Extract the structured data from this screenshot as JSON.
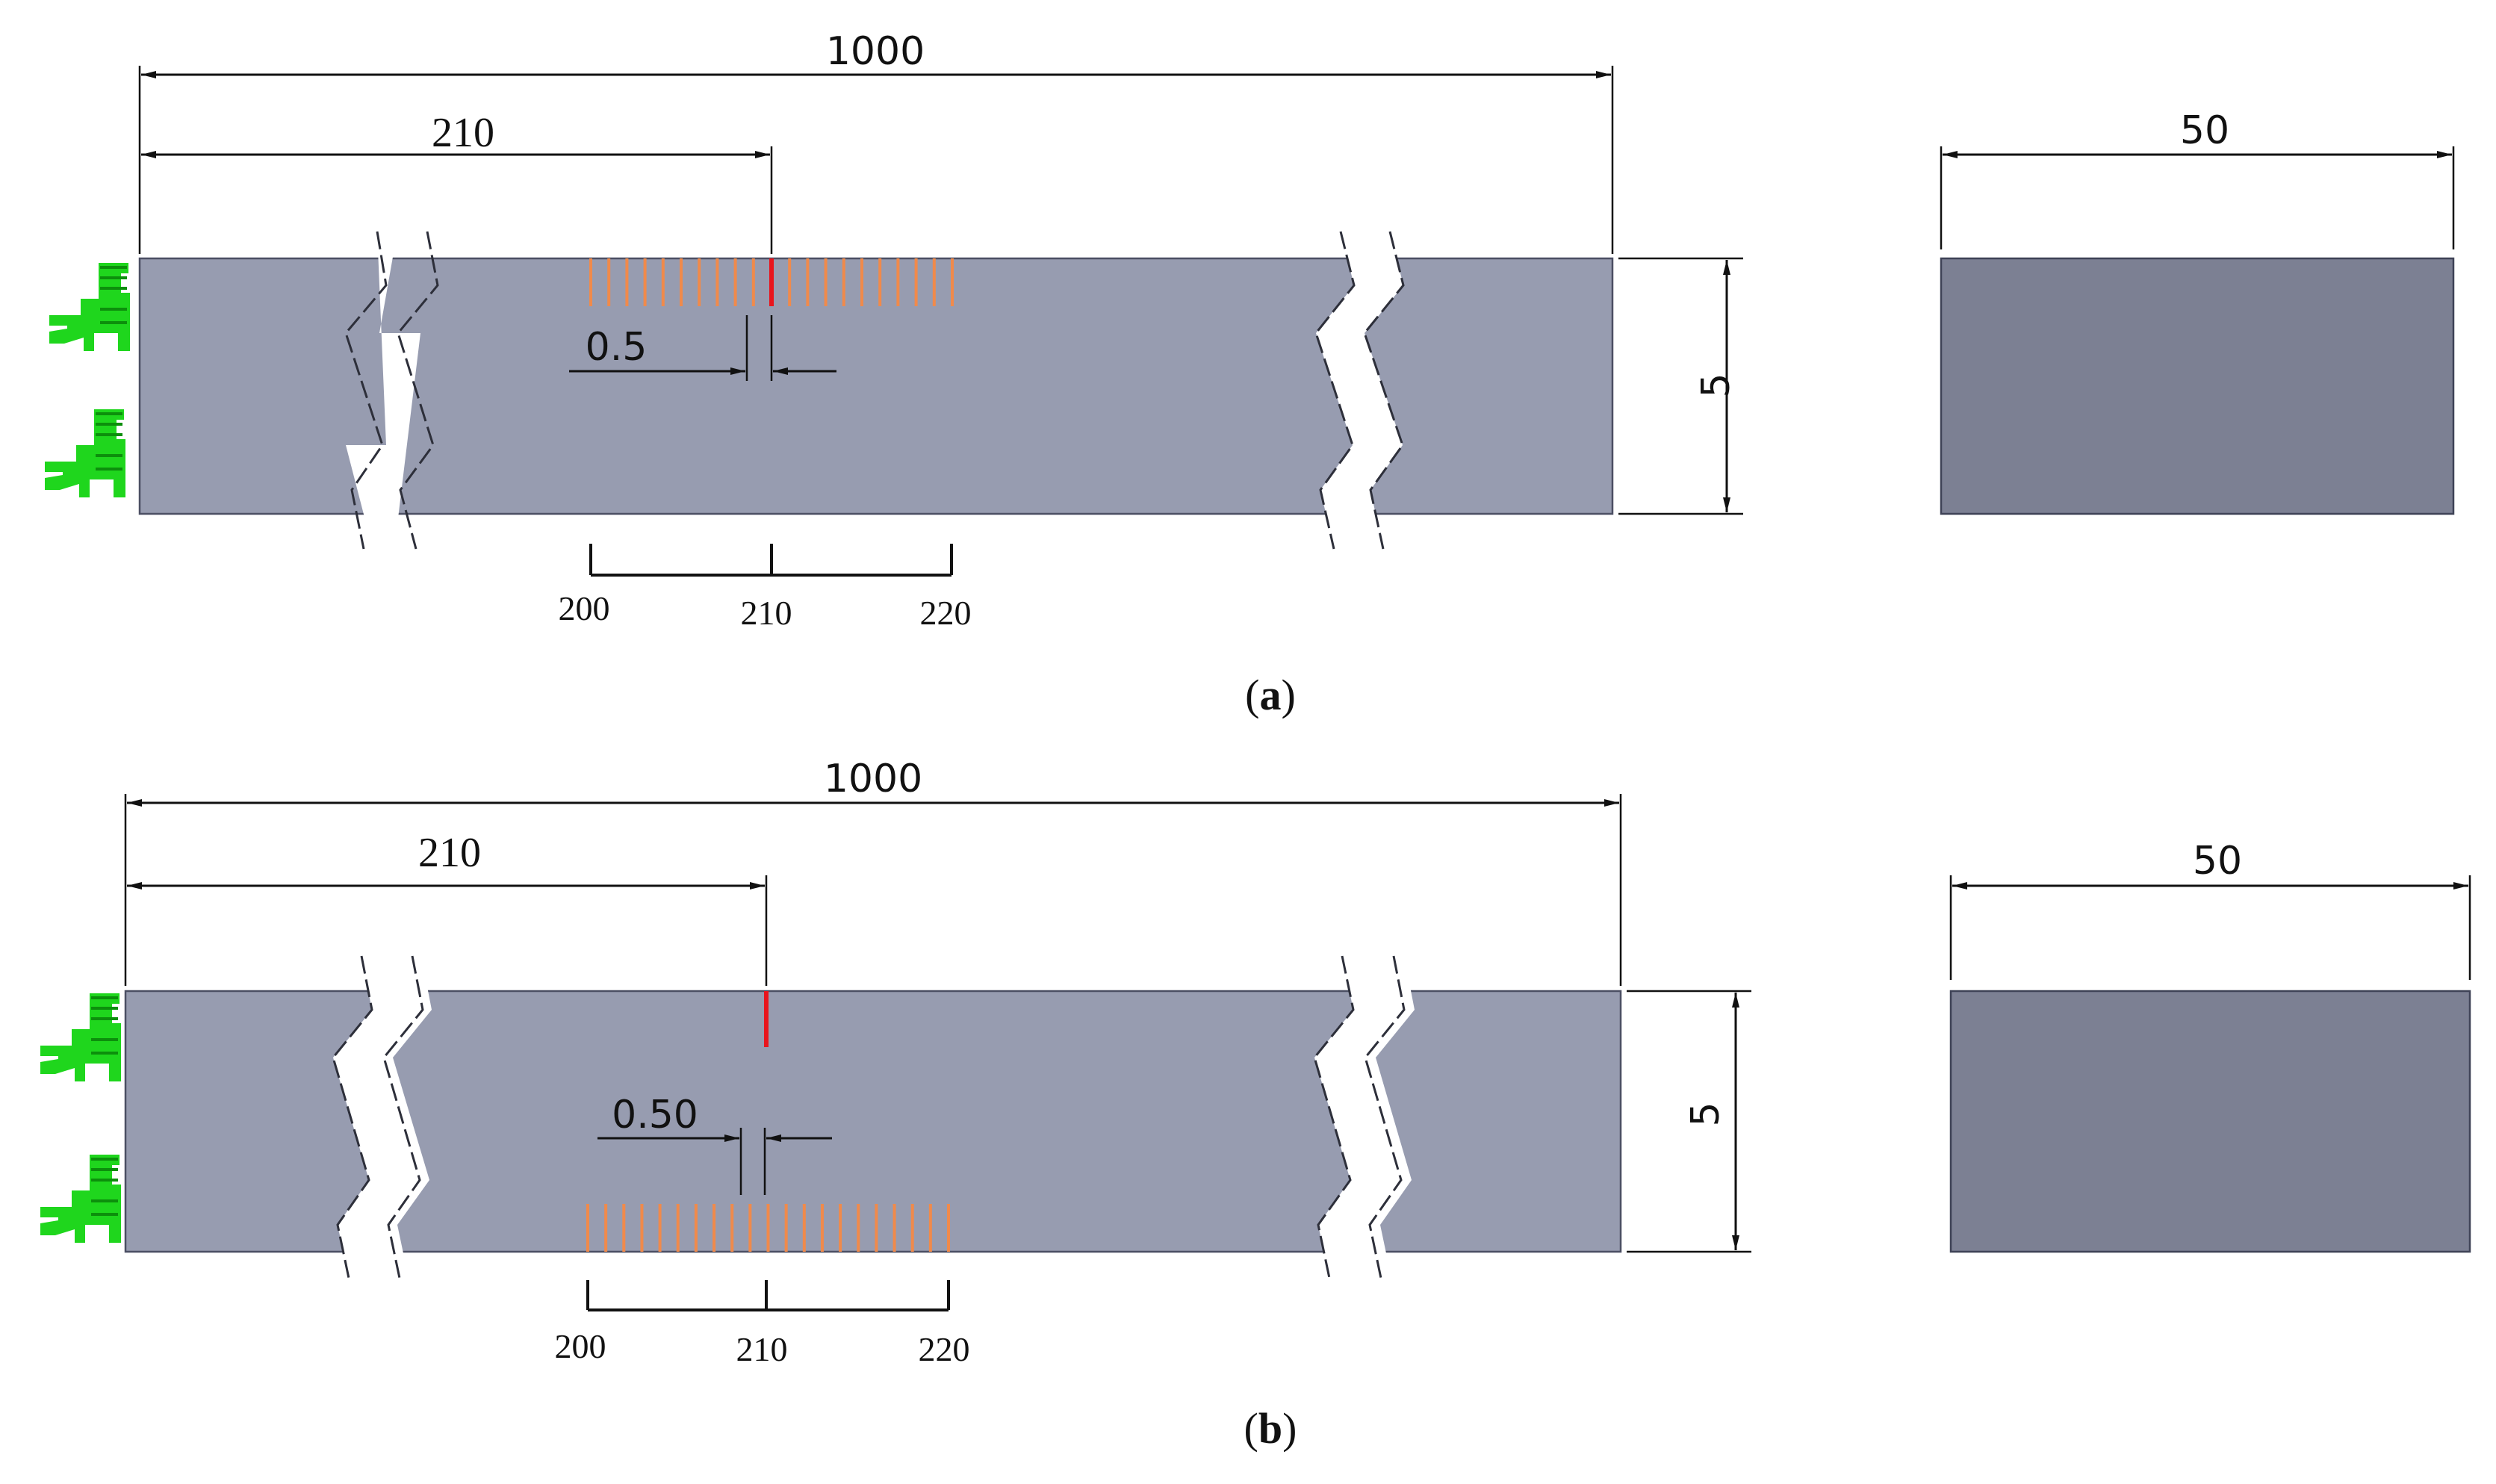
{
  "colors": {
    "beam_face": "#979cb0",
    "end_block": "#7c8093",
    "crack": "#e8151d",
    "sensor": "#f08a4b",
    "support": "#1fd61d",
    "dimension": "#111111"
  },
  "icons": {
    "support": "clamp-fixture-icon"
  },
  "panels": [
    {
      "id": "a",
      "dims": {
        "length": "1000",
        "crack_position": "210",
        "crack_width": "0.5",
        "height": "5",
        "width": "50"
      },
      "scale_ticks": [
        "200",
        "210",
        "220"
      ],
      "caption": {
        "open": "(",
        "letter": "a",
        "close": ")"
      },
      "crack_location": "top",
      "sensor_location": "top"
    },
    {
      "id": "b",
      "dims": {
        "length": "1000",
        "crack_position": "210",
        "crack_width": "0.50",
        "height": "5",
        "width": "50"
      },
      "scale_ticks": [
        "200",
        "210",
        "220"
      ],
      "caption": {
        "open": "(",
        "letter": "b",
        "close": ")"
      },
      "crack_location": "top",
      "sensor_location": "bottom"
    }
  ]
}
